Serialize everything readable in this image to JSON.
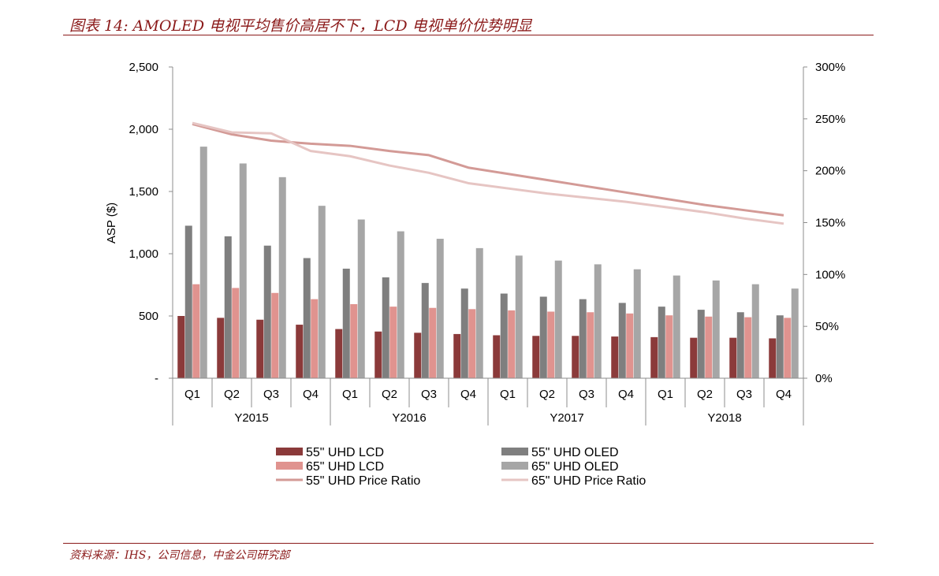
{
  "header": {
    "title": "图表 14: AMOLED 电视平均售价高居不下，LCD 电视单价优势明显"
  },
  "footer": {
    "source": "资料来源：IHS，公司信息，中金公司研究部"
  },
  "chart_data": {
    "type": "bar",
    "years": [
      "Y2015",
      "Y2016",
      "Y2017",
      "Y2018"
    ],
    "quarters": [
      "Q1",
      "Q2",
      "Q3",
      "Q4"
    ],
    "categories": [
      "Y2015 Q1",
      "Y2015 Q2",
      "Y2015 Q3",
      "Y2015 Q4",
      "Y2016 Q1",
      "Y2016 Q2",
      "Y2016 Q3",
      "Y2016 Q4",
      "Y2017 Q1",
      "Y2017 Q2",
      "Y2017 Q3",
      "Y2017 Q4",
      "Y2018 Q1",
      "Y2018 Q2",
      "Y2018 Q3",
      "Y2018 Q4"
    ],
    "ylabel": "ASP ($)",
    "ylim": [
      0,
      2500
    ],
    "y_ticks": [
      {
        "value": 0,
        "label": "-"
      },
      {
        "value": 500,
        "label": "500"
      },
      {
        "value": 1000,
        "label": "1,000"
      },
      {
        "value": 1500,
        "label": "1,500"
      },
      {
        "value": 2000,
        "label": "2,000"
      },
      {
        "value": 2500,
        "label": "2,500"
      }
    ],
    "y2lim": [
      0,
      3.0
    ],
    "y2_ticks": [
      {
        "value": 0,
        "label": "0%"
      },
      {
        "value": 0.5,
        "label": "50%"
      },
      {
        "value": 1.0,
        "label": "100%"
      },
      {
        "value": 1.5,
        "label": "150%"
      },
      {
        "value": 2.0,
        "label": "200%"
      },
      {
        "value": 2.5,
        "label": "250%"
      },
      {
        "value": 3.0,
        "label": "300%"
      }
    ],
    "grid": false,
    "legend_position": "bottom",
    "bar_series": [
      {
        "name": "55\" UHD LCD",
        "color": "#8b3a3a",
        "values": [
          500,
          485,
          470,
          430,
          395,
          375,
          365,
          355,
          345,
          340,
          340,
          335,
          330,
          325,
          325,
          320
        ]
      },
      {
        "name": "55\" UHD OLED",
        "color": "#7f7f7f",
        "values": [
          1225,
          1140,
          1065,
          965,
          880,
          810,
          765,
          720,
          680,
          655,
          635,
          605,
          575,
          550,
          530,
          505
        ]
      },
      {
        "name": "65\" UHD LCD",
        "color": "#e0938f",
        "values": [
          755,
          725,
          685,
          635,
          595,
          575,
          565,
          555,
          545,
          535,
          530,
          520,
          505,
          495,
          490,
          485
        ]
      },
      {
        "name": "65\" UHD OLED",
        "color": "#a6a6a6",
        "values": [
          1860,
          1725,
          1615,
          1385,
          1275,
          1180,
          1120,
          1045,
          985,
          945,
          915,
          875,
          825,
          785,
          755,
          720
        ]
      }
    ],
    "line_series": [
      {
        "name": "55\" UHD Price Ratio",
        "color": "#d39a96",
        "values": [
          2.45,
          2.35,
          2.29,
          2.26,
          2.24,
          2.19,
          2.15,
          2.03,
          1.97,
          1.91,
          1.85,
          1.79,
          1.73,
          1.67,
          1.62,
          1.57
        ]
      },
      {
        "name": "65\" UHD Price Ratio",
        "color": "#e6c5c3",
        "values": [
          2.46,
          2.37,
          2.36,
          2.19,
          2.14,
          2.05,
          1.98,
          1.88,
          1.83,
          1.78,
          1.74,
          1.7,
          1.65,
          1.6,
          1.54,
          1.49
        ]
      }
    ],
    "legend_order": [
      "55\" UHD LCD",
      "55\" UHD OLED",
      "65\" UHD LCD",
      "65\" UHD OLED",
      "55\" UHD Price Ratio",
      "65\" UHD Price Ratio"
    ]
  }
}
